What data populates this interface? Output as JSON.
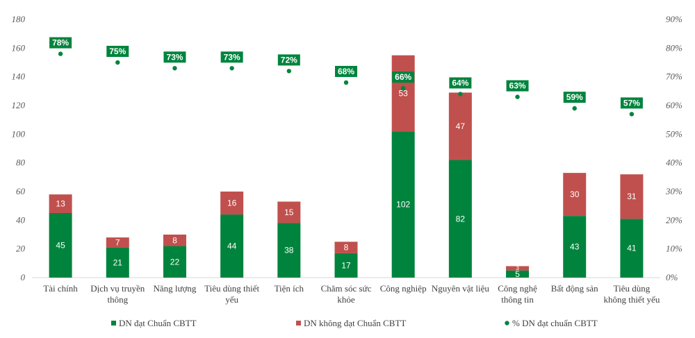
{
  "chart_data": {
    "type": "bar",
    "stacked": true,
    "categories": [
      [
        "Tài chính"
      ],
      [
        "Dịch vụ truyền",
        "thông"
      ],
      [
        "Năng lượng"
      ],
      [
        "Tiêu dùng thiết",
        "yếu"
      ],
      [
        "Tiện ích"
      ],
      [
        "Chăm sóc sức",
        "khỏe"
      ],
      [
        "Công nghiệp"
      ],
      [
        "Nguyên vật liệu"
      ],
      [
        "Công nghệ",
        "thông tin"
      ],
      [
        "Bất động sản"
      ],
      [
        "Tiêu dùng",
        "không thiết yếu"
      ]
    ],
    "series": [
      {
        "name": "DN đạt Chuẩn CBTT",
        "type": "bar",
        "axis": "left",
        "color": "#00843D",
        "values": [
          45,
          21,
          22,
          44,
          38,
          17,
          102,
          82,
          5,
          43,
          41
        ]
      },
      {
        "name": "DN không đạt Chuẩn CBTT",
        "type": "bar",
        "axis": "left",
        "color": "#C0504D",
        "values": [
          13,
          7,
          8,
          16,
          15,
          8,
          53,
          47,
          3,
          30,
          31
        ]
      },
      {
        "name": "% DN đạt chuẩn CBTT",
        "type": "scatter",
        "axis": "right",
        "color": "#00843D",
        "values": [
          78,
          75,
          73,
          73,
          72,
          68,
          66,
          64,
          63,
          59,
          57
        ],
        "labels": [
          "78%",
          "75%",
          "73%",
          "73%",
          "72%",
          "68%",
          "66%",
          "64%",
          "63%",
          "59%",
          "57%"
        ]
      }
    ],
    "y_left": {
      "min": 0,
      "max": 180,
      "step": 20,
      "ticks": [
        "0",
        "20",
        "40",
        "60",
        "80",
        "100",
        "120",
        "140",
        "160",
        "180"
      ]
    },
    "y_right": {
      "min": 0,
      "max": 90,
      "step": 10,
      "ticks": [
        "0%",
        "10%",
        "20%",
        "30%",
        "40%",
        "50%",
        "60%",
        "70%",
        "80%",
        "90%"
      ]
    },
    "grid": false,
    "legend_position": "bottom"
  }
}
